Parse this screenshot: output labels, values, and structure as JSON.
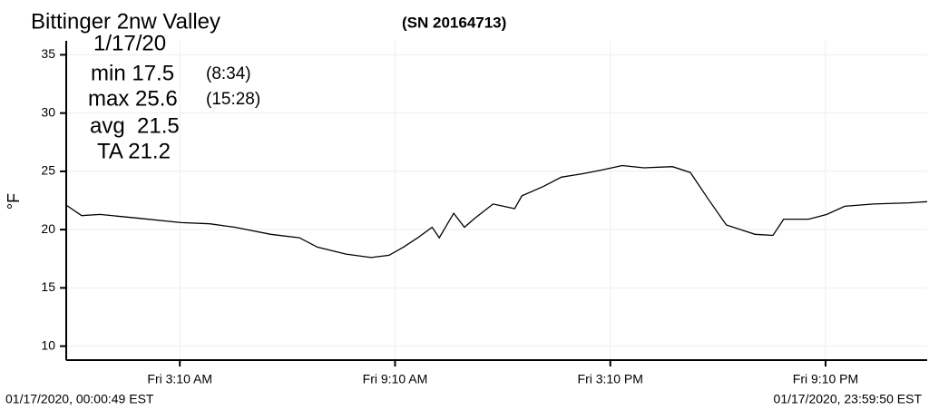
{
  "chart_data": {
    "type": "line",
    "title": "Bittinger 2nw Valley",
    "subtitle": "(SN 20164713)",
    "y_label": "°F",
    "annotations": [
      "1/17/20",
      "min 17.5",
      "(8:34)",
      "max 25.6",
      "(15:28)",
      "avg  21.5",
      "TA 21.2"
    ],
    "start_time": "01/17/2020, 00:00:49 EST",
    "end_time": "01/17/2020, 23:59:50 EST",
    "x": [
      0,
      0.43,
      0.94,
      1.95,
      3.2,
      4.0,
      4.7,
      5.7,
      6.5,
      7.0,
      7.8,
      8.5,
      9.0,
      9.4,
      9.8,
      10.2,
      10.4,
      10.8,
      11.1,
      11.4,
      11.9,
      12.5,
      12.7,
      13.3,
      13.8,
      14.4,
      14.9,
      15.5,
      16.1,
      16.9,
      17.4,
      17.9,
      18.4,
      19.2,
      19.7,
      20.0,
      20.7,
      21.2,
      21.7,
      22.5,
      23.5,
      24
    ],
    "series": [
      {
        "color": "#000000",
        "values": [
          22.1,
          21.2,
          21.3,
          21.0,
          20.6,
          20.5,
          20.2,
          19.6,
          19.3,
          18.5,
          17.9,
          17.6,
          17.8,
          18.5,
          19.3,
          20.2,
          19.3,
          21.4,
          20.2,
          21.0,
          22.2,
          21.8,
          22.9,
          23.7,
          24.5,
          24.8,
          25.1,
          25.5,
          25.3,
          25.4,
          24.9,
          22.6,
          20.4,
          19.6,
          19.5,
          20.9,
          20.9,
          21.3,
          22.0,
          22.2,
          22.3,
          22.4
        ]
      }
    ],
    "xlim": [
      0,
      24
    ],
    "xticks": [
      {
        "value": 3.1667,
        "label": "Fri 3:10 AM"
      },
      {
        "value": 9.1667,
        "label": "Fri 9:10 AM"
      },
      {
        "value": 15.1667,
        "label": "Fri 3:10 PM"
      },
      {
        "value": 21.1667,
        "label": "Fri 9:10 PM"
      }
    ],
    "ylim": [
      8.8,
      36.2
    ],
    "yticks": [
      10,
      15,
      20,
      25,
      30,
      35
    ],
    "grid": true
  }
}
